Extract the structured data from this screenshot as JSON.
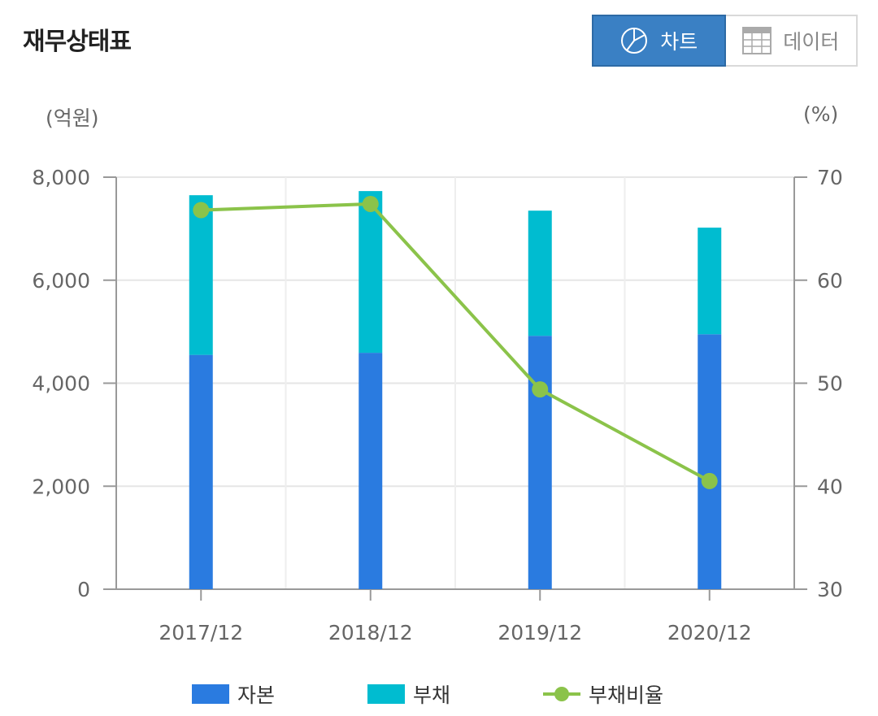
{
  "title": "재무상태표",
  "toggle": {
    "chart_label": "차트",
    "data_label": "데이터",
    "chart_icon": "pie-chart-icon",
    "data_icon": "table-icon"
  },
  "units": {
    "left": "(억원)",
    "right": "(%)"
  },
  "colors": {
    "capital": "#2a7be0",
    "debt": "#00bcd0",
    "ratio": "#8bc34a",
    "active_btn": "#3a80c4"
  },
  "chart_data": {
    "type": "bar",
    "stacked": true,
    "categories": [
      "2017/12",
      "2018/12",
      "2019/12",
      "2020/12"
    ],
    "series": [
      {
        "name": "자본",
        "type": "bar",
        "axis": "left",
        "values": [
          4550,
          4590,
          4920,
          4950
        ]
      },
      {
        "name": "부채",
        "type": "bar",
        "axis": "left",
        "values": [
          3100,
          3140,
          2430,
          2070
        ]
      },
      {
        "name": "부채비율",
        "type": "line",
        "axis": "right",
        "values": [
          66.8,
          67.4,
          49.4,
          40.5
        ]
      }
    ],
    "y_left": {
      "min": 0,
      "max": 8000,
      "ticks": [
        0,
        2000,
        4000,
        6000,
        8000
      ],
      "tick_labels": [
        "0",
        "2,000",
        "4,000",
        "6,000",
        "8,000"
      ]
    },
    "y_right": {
      "min": 30,
      "max": 70,
      "ticks": [
        30,
        40,
        50,
        60,
        70
      ],
      "tick_labels": [
        "30",
        "40",
        "50",
        "60",
        "70"
      ]
    },
    "grid": true,
    "legend_position": "bottom"
  }
}
